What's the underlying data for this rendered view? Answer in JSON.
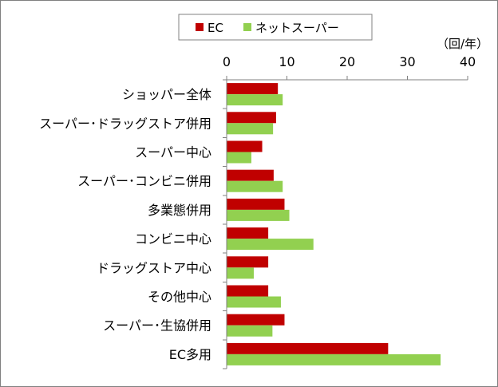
{
  "chart_data": {
    "type": "bar",
    "orientation": "horizontal",
    "title": "",
    "unit_label": "（回/年）",
    "xlim": [
      0,
      40
    ],
    "xticks": [
      "0",
      "10",
      "20",
      "30",
      "40"
    ],
    "xtick_values": [
      0,
      10,
      20,
      30,
      40
    ],
    "grid": false,
    "legend_position": "top",
    "categories": [
      "ショッパー全体",
      "スーパー･ドラッグストア併用",
      "スーパー中心",
      "スーパー･コンビニ併用",
      "多業態併用",
      "コンビニ中心",
      "ドラッグストア中心",
      "その他中心",
      "スーパー･生協併用",
      "EC多用"
    ],
    "series": [
      {
        "name": "EC",
        "color": "#c00000",
        "values": [
          8.5,
          8.2,
          5.9,
          7.8,
          9.6,
          6.9,
          6.9,
          6.9,
          9.6,
          26.8
        ]
      },
      {
        "name": "ネットスーパー",
        "color": "#92d050",
        "values": [
          9.3,
          7.7,
          4.1,
          9.3,
          10.4,
          14.4,
          4.5,
          9.0,
          7.6,
          35.5
        ]
      }
    ]
  }
}
